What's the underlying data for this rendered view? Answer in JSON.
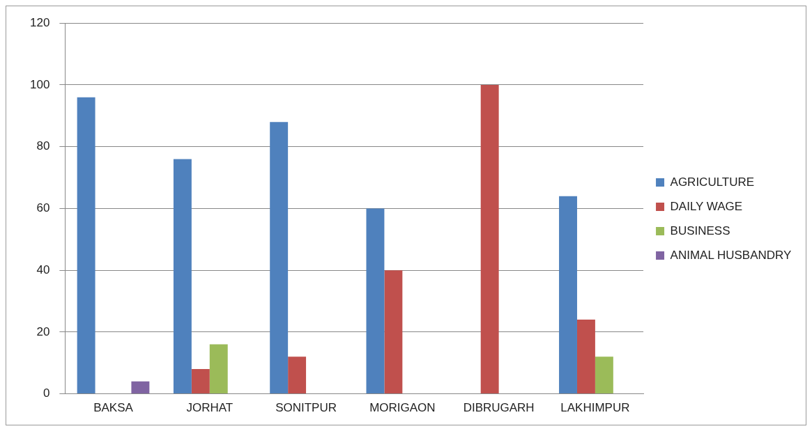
{
  "chart_data": {
    "type": "bar",
    "categories": [
      "BAKSA",
      "JORHAT",
      "SONITPUR",
      "MORIGAON",
      "DIBRUGARH",
      "LAKHIMPUR"
    ],
    "series": [
      {
        "name": "AGRICULTURE",
        "color": "#4f81bd",
        "values": [
          96,
          76,
          88,
          60,
          0,
          64
        ]
      },
      {
        "name": "DAILY WAGE",
        "color": "#c0504d",
        "values": [
          0,
          8,
          12,
          40,
          100,
          24
        ]
      },
      {
        "name": "BUSINESS",
        "color": "#9bbb59",
        "values": [
          0,
          16,
          0,
          0,
          0,
          12
        ]
      },
      {
        "name": "ANIMAL HUSBANDRY",
        "color": "#8064a2",
        "values": [
          4,
          0,
          0,
          0,
          0,
          0
        ]
      }
    ],
    "ylim": [
      0,
      120
    ],
    "yticks": [
      0,
      20,
      40,
      60,
      80,
      100,
      120
    ],
    "grid": "y",
    "legend": "right"
  }
}
